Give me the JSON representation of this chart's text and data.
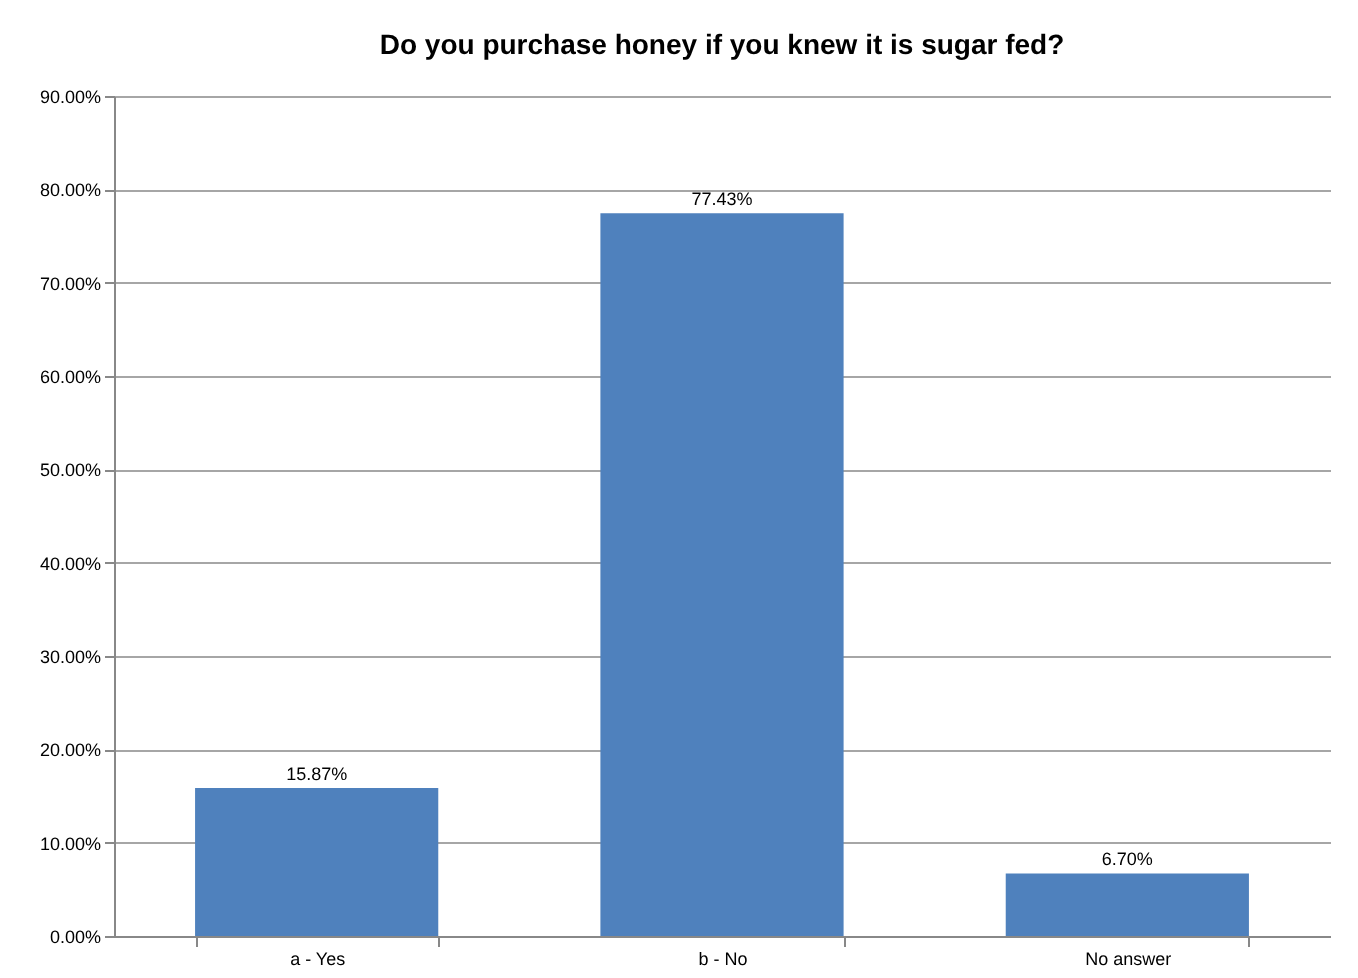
{
  "chart_data": {
    "type": "bar",
    "title": "Do you purchase honey if you knew it is sugar fed?",
    "categories": [
      "a - Yes",
      "b - No",
      "No answer"
    ],
    "values": [
      15.87,
      77.43,
      6.7
    ],
    "value_labels": [
      "15.87%",
      "77.43%",
      "6.70%"
    ],
    "color": "#4f81bd",
    "ylim": [
      0,
      90
    ],
    "yticks": [
      {
        "value": 0,
        "label": "0.00%"
      },
      {
        "value": 10,
        "label": "10.00%"
      },
      {
        "value": 20,
        "label": "20.00%"
      },
      {
        "value": 30,
        "label": "30.00%"
      },
      {
        "value": 40,
        "label": "40.00%"
      },
      {
        "value": 50,
        "label": "50.00%"
      },
      {
        "value": 60,
        "label": "60.00%"
      },
      {
        "value": 70,
        "label": "70.00%"
      },
      {
        "value": 80,
        "label": "80.00%"
      },
      {
        "value": 90,
        "label": "90.00%"
      }
    ],
    "grid": true
  }
}
